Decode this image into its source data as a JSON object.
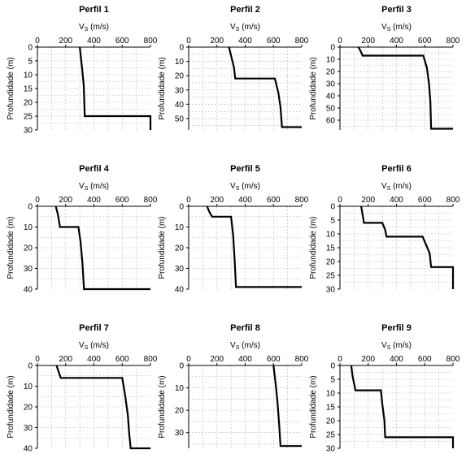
{
  "chart_data": [
    {
      "type": "line",
      "title": "Perfil 1",
      "xlabel_main": "V",
      "xlabel_sub": "S",
      "xlabel_unit": " (m/s)",
      "ylabel": "Profundidade (m)",
      "xlim": [
        0,
        800
      ],
      "ylim": [
        0,
        30
      ],
      "xticks": [
        "0",
        "200",
        "400",
        "600",
        "800"
      ],
      "yticks": [
        "0",
        "5",
        "10",
        "15",
        "20",
        "25",
        "30"
      ],
      "ytick_values": [
        0,
        5,
        10,
        15,
        20,
        25,
        30
      ],
      "points": [
        [
          300,
          0
        ],
        [
          315,
          7
        ],
        [
          328,
          14
        ],
        [
          335,
          25
        ],
        [
          800,
          25
        ],
        [
          800,
          30
        ]
      ]
    },
    {
      "type": "line",
      "title": "Perfil 2",
      "xlabel_main": "V",
      "xlabel_sub": "S",
      "xlabel_unit": " (m/s)",
      "ylabel": "Profundidade (m)",
      "xlim": [
        0,
        800
      ],
      "ylim": [
        0,
        58
      ],
      "xticks": [
        "0",
        "200",
        "400",
        "600",
        "800"
      ],
      "yticks": [
        "0",
        "10",
        "20",
        "30",
        "40",
        "50"
      ],
      "ytick_values": [
        0,
        10,
        20,
        30,
        40,
        50
      ],
      "points": [
        [
          285,
          0
        ],
        [
          305,
          8
        ],
        [
          320,
          14
        ],
        [
          330,
          22
        ],
        [
          610,
          22
        ],
        [
          635,
          32
        ],
        [
          650,
          42
        ],
        [
          660,
          56
        ],
        [
          800,
          56
        ]
      ]
    },
    {
      "type": "line",
      "title": "Perfil 3",
      "xlabel_main": "V",
      "xlabel_sub": "S",
      "xlabel_unit": " (m/s)",
      "ylabel": "Profundidade (m)",
      "xlim": [
        0,
        800
      ],
      "ylim": [
        0,
        68
      ],
      "xticks": [
        "0",
        "200",
        "400",
        "600",
        "800"
      ],
      "yticks": [
        "0",
        "10",
        "20",
        "30",
        "40",
        "50",
        "60"
      ],
      "ytick_values": [
        0,
        10,
        20,
        30,
        40,
        50,
        60
      ],
      "points": [
        [
          130,
          0
        ],
        [
          145,
          3
        ],
        [
          160,
          7
        ],
        [
          590,
          7
        ],
        [
          615,
          17
        ],
        [
          630,
          30
        ],
        [
          640,
          45
        ],
        [
          645,
          67
        ],
        [
          800,
          67
        ]
      ]
    },
    {
      "type": "line",
      "title": "Perfil 4",
      "xlabel_main": "V",
      "xlabel_sub": "S",
      "xlabel_unit": " (m/s)",
      "ylabel": "Profundidade (m)",
      "xlim": [
        0,
        800
      ],
      "ylim": [
        0,
        40
      ],
      "xticks": [
        "0",
        "200",
        "400",
        "600",
        "800"
      ],
      "yticks": [
        "0",
        "10",
        "20",
        "30",
        "40"
      ],
      "ytick_values": [
        0,
        10,
        20,
        30,
        40
      ],
      "points": [
        [
          130,
          0
        ],
        [
          145,
          4
        ],
        [
          160,
          10
        ],
        [
          290,
          10
        ],
        [
          305,
          17
        ],
        [
          318,
          27
        ],
        [
          330,
          40
        ],
        [
          800,
          40
        ]
      ]
    },
    {
      "type": "line",
      "title": "Perfil 5",
      "xlabel_main": "V",
      "xlabel_sub": "S",
      "xlabel_unit": " (m/s)",
      "ylabel": "Profundidade (m)",
      "xlim": [
        0,
        800
      ],
      "ylim": [
        0,
        40
      ],
      "xticks": [
        "0",
        "200",
        "400",
        "600",
        "800"
      ],
      "yticks": [
        "0",
        "10",
        "20",
        "30",
        "40"
      ],
      "ytick_values": [
        0,
        10,
        20,
        30,
        40
      ],
      "points": [
        [
          130,
          0
        ],
        [
          145,
          2.5
        ],
        [
          165,
          5
        ],
        [
          300,
          5
        ],
        [
          315,
          14
        ],
        [
          325,
          26
        ],
        [
          335,
          39
        ],
        [
          800,
          39
        ]
      ]
    },
    {
      "type": "line",
      "title": "Perfil 6",
      "xlabel_main": "V",
      "xlabel_sub": "S",
      "xlabel_unit": " (m/s)",
      "ylabel": "Profundidade (m)",
      "xlim": [
        0,
        800
      ],
      "ylim": [
        0,
        30
      ],
      "xticks": [
        "0",
        "200",
        "400",
        "600",
        "800"
      ],
      "yticks": [
        "0",
        "5",
        "10",
        "15",
        "20",
        "25",
        "30"
      ],
      "ytick_values": [
        0,
        5,
        10,
        15,
        20,
        25,
        30
      ],
      "points": [
        [
          150,
          0
        ],
        [
          160,
          3
        ],
        [
          170,
          6
        ],
        [
          300,
          6
        ],
        [
          320,
          8.5
        ],
        [
          330,
          11
        ],
        [
          585,
          11
        ],
        [
          610,
          14
        ],
        [
          635,
          17
        ],
        [
          645,
          22
        ],
        [
          800,
          22
        ],
        [
          800,
          30
        ]
      ]
    },
    {
      "type": "line",
      "title": "Perfil 7",
      "xlabel_main": "V",
      "xlabel_sub": "S",
      "xlabel_unit": " (m/s)",
      "ylabel": "Profundidade (m)",
      "xlim": [
        0,
        800
      ],
      "ylim": [
        0,
        40
      ],
      "xticks": [
        "0",
        "200",
        "400",
        "600",
        "800"
      ],
      "yticks": [
        "0",
        "10",
        "20",
        "30",
        "40"
      ],
      "ytick_values": [
        0,
        10,
        20,
        30,
        40
      ],
      "points": [
        [
          135,
          0
        ],
        [
          145,
          2
        ],
        [
          165,
          6
        ],
        [
          600,
          6
        ],
        [
          620,
          14
        ],
        [
          640,
          24
        ],
        [
          650,
          33
        ],
        [
          660,
          40
        ],
        [
          800,
          40
        ]
      ]
    },
    {
      "type": "line",
      "title": "Perfil 8",
      "xlabel_main": "V",
      "xlabel_sub": "S",
      "xlabel_unit": " (m/s)",
      "ylabel": "Profundidade (m)",
      "xlim": [
        0,
        800
      ],
      "ylim": [
        0,
        37
      ],
      "xticks": [
        "0",
        "200",
        "400",
        "600",
        "800"
      ],
      "yticks": [
        "0",
        "10",
        "20",
        "30"
      ],
      "ytick_values": [
        0,
        10,
        20,
        30
      ],
      "points": [
        [
          600,
          0
        ],
        [
          615,
          8
        ],
        [
          628,
          16
        ],
        [
          640,
          26
        ],
        [
          650,
          36
        ],
        [
          800,
          36
        ]
      ]
    },
    {
      "type": "line",
      "title": "Perfil 9",
      "xlabel_main": "V",
      "xlabel_sub": "S",
      "xlabel_unit": " (m/s)",
      "ylabel": "Profundidade (m)",
      "xlim": [
        0,
        800
      ],
      "ylim": [
        0,
        30
      ],
      "xticks": [
        "0",
        "200",
        "400",
        "600",
        "800"
      ],
      "yticks": [
        "0",
        "5",
        "10",
        "15",
        "20",
        "25",
        "30"
      ],
      "ytick_values": [
        0,
        5,
        10,
        15,
        20,
        25,
        30
      ],
      "points": [
        [
          80,
          0
        ],
        [
          90,
          4
        ],
        [
          110,
          9
        ],
        [
          290,
          9
        ],
        [
          300,
          14
        ],
        [
          315,
          20
        ],
        [
          320,
          26
        ],
        [
          800,
          26
        ],
        [
          800,
          30
        ]
      ]
    }
  ]
}
